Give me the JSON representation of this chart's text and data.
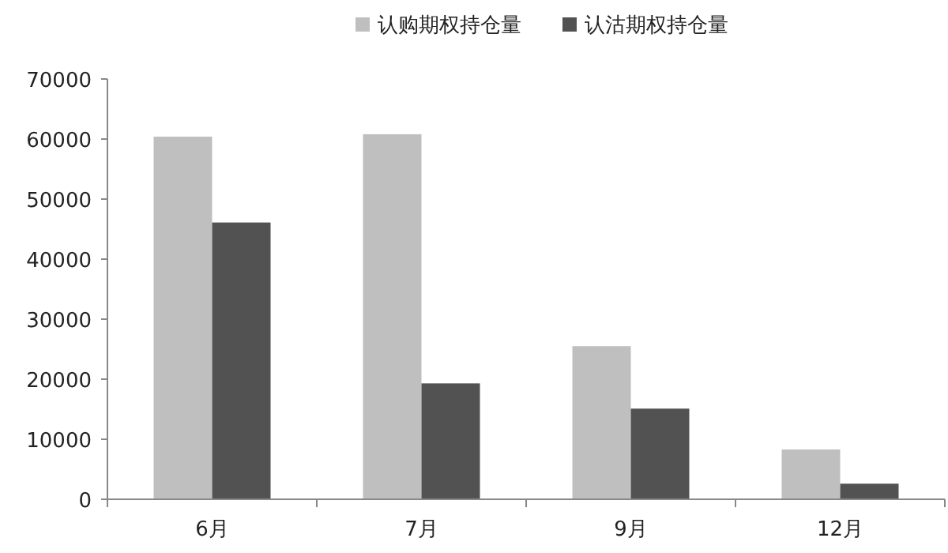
{
  "chart_data": {
    "type": "bar",
    "categories": [
      "6月",
      "7月",
      "9月",
      "12月"
    ],
    "series": [
      {
        "name": "认购期权持仓量",
        "color": "#bfbfbf",
        "values": [
          60400,
          60800,
          25500,
          8300
        ]
      },
      {
        "name": "认沽期权持仓量",
        "color": "#525252",
        "values": [
          46100,
          19300,
          15100,
          2600
        ]
      }
    ],
    "ylim": [
      0,
      70000
    ],
    "yticks": [
      0,
      10000,
      20000,
      30000,
      40000,
      50000,
      60000,
      70000
    ],
    "legend": "top",
    "grid": false
  }
}
